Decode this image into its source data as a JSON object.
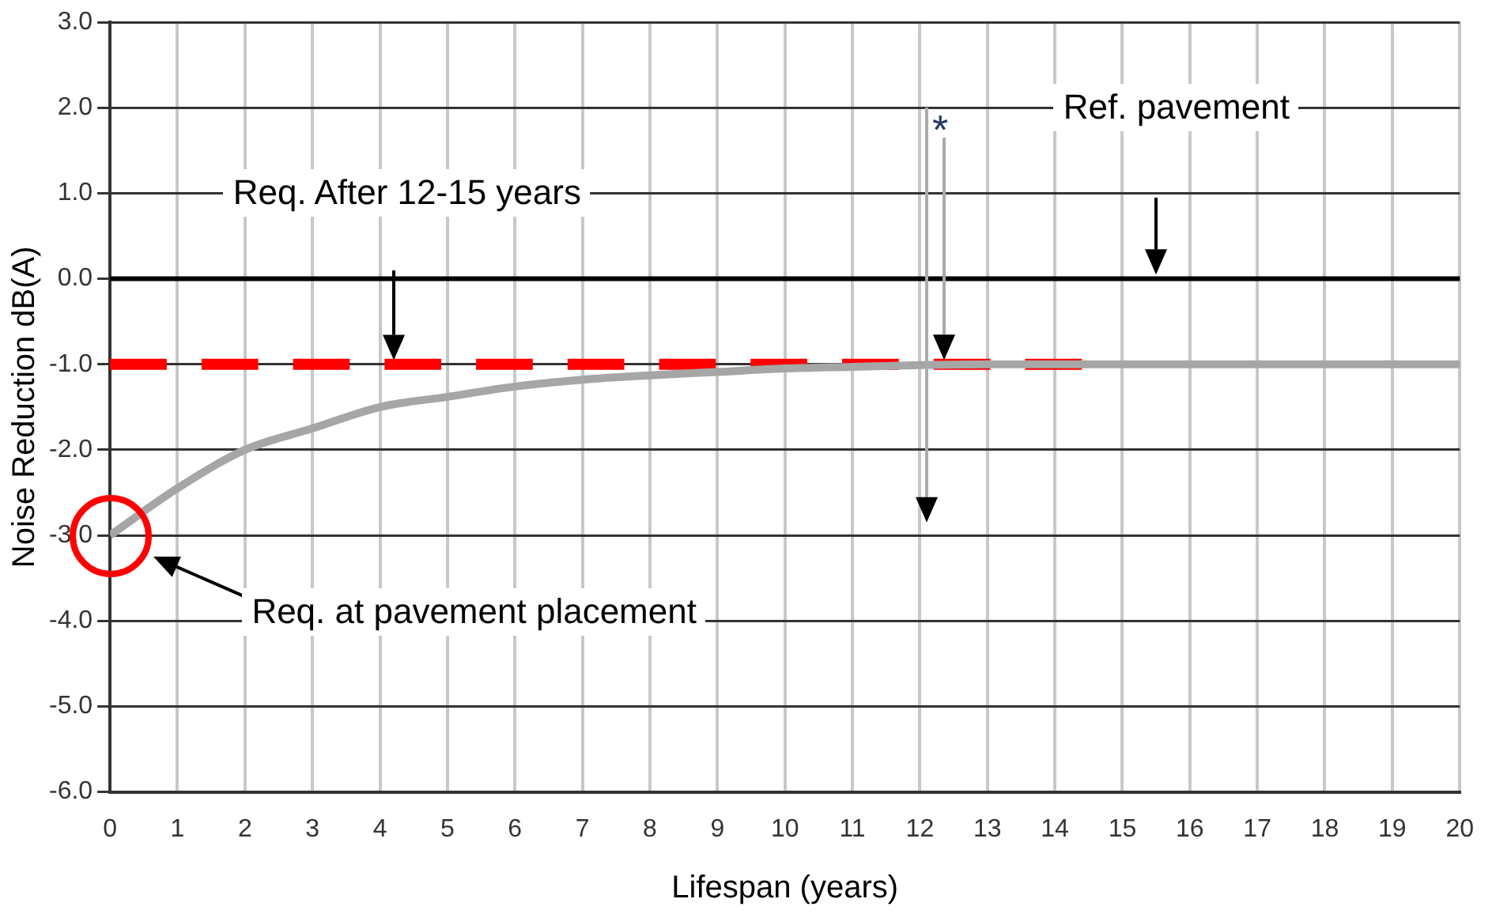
{
  "chart_data": {
    "type": "line",
    "xlabel": "Lifespan (years)",
    "ylabel": "Noise Reduction dB(A)",
    "xlim": [
      0,
      20
    ],
    "xticks": [
      0,
      1,
      2,
      3,
      4,
      5,
      6,
      7,
      8,
      9,
      10,
      11,
      12,
      13,
      14,
      15,
      16,
      17,
      18,
      19,
      20
    ],
    "ylim": [
      -6,
      3
    ],
    "yticks": [
      {
        "value": -6,
        "label": "-6.0"
      },
      {
        "value": -5,
        "label": "-5.0"
      },
      {
        "value": -4,
        "label": "-4.0"
      },
      {
        "value": -3,
        "label": "-3.0"
      },
      {
        "value": -2,
        "label": "-2.0"
      },
      {
        "value": -1,
        "label": "-1.0"
      },
      {
        "value": 0,
        "label": "0.0"
      },
      {
        "value": 1,
        "label": "1.0"
      },
      {
        "value": 2,
        "label": "2.0"
      },
      {
        "value": 3,
        "label": "3.0"
      }
    ],
    "series": [
      {
        "color": "#a6a6a6",
        "x": [
          0,
          1,
          2,
          3,
          4,
          5,
          6,
          7,
          8,
          9,
          10,
          11,
          12,
          13,
          14,
          15,
          16,
          17,
          18,
          19,
          20
        ],
        "values": [
          -3.0,
          -2.45,
          -2.0,
          -1.75,
          -1.5,
          -1.38,
          -1.26,
          -1.18,
          -1.13,
          -1.09,
          -1.05,
          -1.03,
          -1.01,
          -1.0,
          -1.0,
          -1.0,
          -1.0,
          -1.0,
          -1.0,
          -1.0,
          -1.0
        ]
      },
      {
        "color": "#ff0000",
        "line_style": "dashed",
        "x": [
          0,
          14.4
        ],
        "values": [
          -1,
          -1
        ]
      }
    ],
    "ref_lines": [
      {
        "axis": "y",
        "value": 0,
        "color": "#000000"
      }
    ],
    "annotations": [
      "Req. After 12-15 years",
      "Ref. pavement",
      "Req. at pavement placement",
      "*"
    ],
    "grid": true,
    "legend": false,
    "marker": "none"
  }
}
